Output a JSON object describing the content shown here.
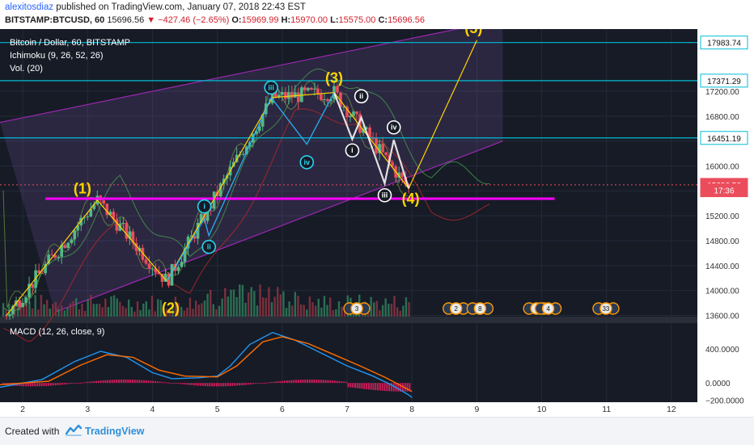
{
  "header": {
    "author": "alexitosdiaz",
    "published_text": "published on TradingView.com, January 07, 2018 22:43 EST",
    "symbol": "BITSTAMP:BTCUSD, 60",
    "last": "15696.56",
    "change": "−427.46 (−2.65%)",
    "o_label": "O:",
    "o_value": "15969.99",
    "h_label": "H:",
    "h_value": "15970.00",
    "l_label": "L:",
    "l_value": "15575.00",
    "c_label": "C:",
    "c_value": "15696.56"
  },
  "legend": {
    "title": "Bitcoin / Dollar, 60, BITSTAMP",
    "ichimoku": "Ichimoku (9, 26, 52, 26)",
    "volume": "Vol. (20)",
    "macd": "MACD (12, 26, close, 9)"
  },
  "footer": {
    "created_with": "Created with",
    "brand": "TradingView"
  },
  "colors": {
    "up": "#53b987",
    "down": "#eb4d5c",
    "accent_yellow": "#ffd400",
    "horizontal_line": "#00bcd4",
    "support_line": "#ff00ff",
    "channel": "#9c27b0",
    "macd_line": "#2196f3",
    "signal_line": "#ff6d00",
    "histogram": "#e91e63"
  },
  "chart_data": [
    {
      "type": "candlestick",
      "title": "Bitcoin / Dollar, 60, BITSTAMP",
      "x_ticks": [
        "2",
        "3",
        "4",
        "5",
        "6",
        "7",
        "8",
        "9",
        "10",
        "11",
        "12"
      ],
      "y_ticks": [
        "17200.00",
        "16800.00",
        "16400.00",
        "16000.00",
        "15600.00",
        "15200.00",
        "14800.00",
        "14400.00",
        "14000.00",
        "13600.00"
      ],
      "ylim": [
        13580,
        18200
      ],
      "xlim": [
        1.65,
        12.4
      ],
      "price_labels": [
        {
          "value": 17983.74,
          "text": "17983.74",
          "kind": "line"
        },
        {
          "value": 17371.29,
          "text": "17371.29",
          "kind": "line"
        },
        {
          "value": 16451.19,
          "text": "16451.19",
          "kind": "line"
        },
        {
          "value": 15696.56,
          "text": "15696.56",
          "kind": "last"
        },
        {
          "value": 15610.0,
          "text": "17:36",
          "kind": "timer"
        }
      ],
      "horizontal_lines": [
        17983.74,
        17371.29,
        16451.19
      ],
      "support_line": {
        "x1": 2.35,
        "x2": 10.2,
        "y": 15475
      },
      "channel": {
        "upper": [
          [
            1.65,
            16700
          ],
          [
            9.4,
            18350
          ]
        ],
        "lower": [
          [
            2.5,
            13650
          ],
          [
            9.4,
            16400
          ]
        ]
      },
      "key_points": [
        {
          "x": 1.75,
          "y": 13600
        },
        {
          "x": 3.15,
          "y": 15450
        },
        {
          "x": 4.22,
          "y": 14150
        },
        {
          "x": 5.85,
          "y": 17100
        },
        {
          "x": 6.8,
          "y": 17180
        },
        {
          "x": 7.95,
          "y": 15640
        },
        {
          "x": 9.0,
          "y": 18020
        }
      ],
      "wave_labels": [
        {
          "text": "(1)",
          "x": 2.92,
          "y": 15620,
          "color": "yellow"
        },
        {
          "text": "(2)",
          "x": 4.28,
          "y": 13700,
          "color": "yellow"
        },
        {
          "text": "(3)",
          "x": 6.8,
          "y": 17400,
          "color": "yellow"
        },
        {
          "text": "(4)",
          "x": 7.98,
          "y": 15460,
          "color": "yellow"
        },
        {
          "text": "(5)",
          "x": 8.95,
          "y": 18200,
          "color": "yellow"
        },
        {
          "text": "i",
          "x": 4.8,
          "y": 15350,
          "color": "cyan"
        },
        {
          "text": "ii",
          "x": 4.87,
          "y": 14700,
          "color": "cyan"
        },
        {
          "text": "iii",
          "x": 5.83,
          "y": 17260,
          "color": "cyan"
        },
        {
          "text": "iv",
          "x": 6.38,
          "y": 16060,
          "color": "cyan"
        },
        {
          "text": "i",
          "x": 7.08,
          "y": 16250,
          "color": "white"
        },
        {
          "text": "ii",
          "x": 7.22,
          "y": 17120,
          "color": "white"
        },
        {
          "text": "iii",
          "x": 7.58,
          "y": 15530,
          "color": "white"
        },
        {
          "text": "iv",
          "x": 7.72,
          "y": 16620,
          "color": "white"
        }
      ],
      "events": [
        {
          "x": 7.15,
          "text": "3"
        },
        {
          "x": 8.68,
          "text": "2"
        },
        {
          "x": 9.05,
          "text": "8"
        },
        {
          "x": 9.92,
          "text": "5"
        },
        {
          "x": 10.1,
          "text": "4"
        },
        {
          "x": 10.99,
          "text": "33"
        }
      ]
    },
    {
      "type": "line",
      "title": "MACD (12, 26, close, 9)",
      "y_ticks": [
        "400.0000",
        "0.0000",
        "−200.0000"
      ],
      "ylim": [
        -225,
        700
      ],
      "series": [
        {
          "name": "MACD",
          "values": [
            [
              1.65,
              -50
            ],
            [
              2.3,
              40
            ],
            [
              2.8,
              250
            ],
            [
              3.2,
              370
            ],
            [
              3.6,
              300
            ],
            [
              4.0,
              120
            ],
            [
              4.3,
              50
            ],
            [
              4.7,
              60
            ],
            [
              5.0,
              80
            ],
            [
              5.2,
              200
            ],
            [
              5.5,
              450
            ],
            [
              5.85,
              590
            ],
            [
              6.2,
              500
            ],
            [
              6.6,
              350
            ],
            [
              7.0,
              200
            ],
            [
              7.4,
              80
            ],
            [
              7.7,
              -30
            ],
            [
              7.95,
              -140
            ],
            [
              8.0,
              -170
            ]
          ]
        },
        {
          "name": "Signal",
          "values": [
            [
              1.65,
              -20
            ],
            [
              2.4,
              20
            ],
            [
              2.9,
              210
            ],
            [
              3.3,
              330
            ],
            [
              3.7,
              300
            ],
            [
              4.1,
              150
            ],
            [
              4.5,
              80
            ],
            [
              5.0,
              70
            ],
            [
              5.3,
              200
            ],
            [
              5.7,
              480
            ],
            [
              6.0,
              540
            ],
            [
              6.4,
              460
            ],
            [
              6.8,
              330
            ],
            [
              7.2,
              200
            ],
            [
              7.6,
              60
            ],
            [
              7.95,
              -80
            ],
            [
              8.0,
              -100
            ]
          ]
        }
      ]
    }
  ]
}
